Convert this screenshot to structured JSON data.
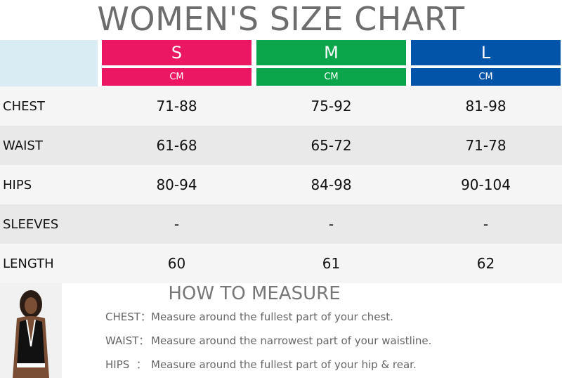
{
  "title": "WOMEN'S SIZE CHART",
  "table": {
    "sizes": [
      {
        "name": "S",
        "unit": "CM",
        "color": "#ec1763"
      },
      {
        "name": "M",
        "unit": "CM",
        "color": "#0ba64c"
      },
      {
        "name": "L",
        "unit": "CM",
        "color": "#0154a8"
      }
    ],
    "rows": [
      {
        "label": "CHEST",
        "values": [
          "71-88",
          "75-92",
          "81-98"
        ]
      },
      {
        "label": "WAIST",
        "values": [
          "61-68",
          "65-72",
          "71-78"
        ]
      },
      {
        "label": "HIPS",
        "values": [
          "80-94",
          "84-98",
          "90-104"
        ]
      },
      {
        "label": "SLEEVES",
        "values": [
          "-",
          "-",
          "-"
        ]
      },
      {
        "label": "LENGTH",
        "values": [
          "60",
          "61",
          "62"
        ]
      }
    ]
  },
  "measure": {
    "title": "HOW TO MEASURE",
    "items": [
      {
        "label": "CHEST：",
        "text": "Measure around the fullest part of your chest."
      },
      {
        "label": "WAIST：",
        "text": "Measure around the narrowest part of your waistline."
      },
      {
        "label": "HIPS  ：",
        "text": "Measure around the fullest part of your hip & rear."
      }
    ]
  }
}
